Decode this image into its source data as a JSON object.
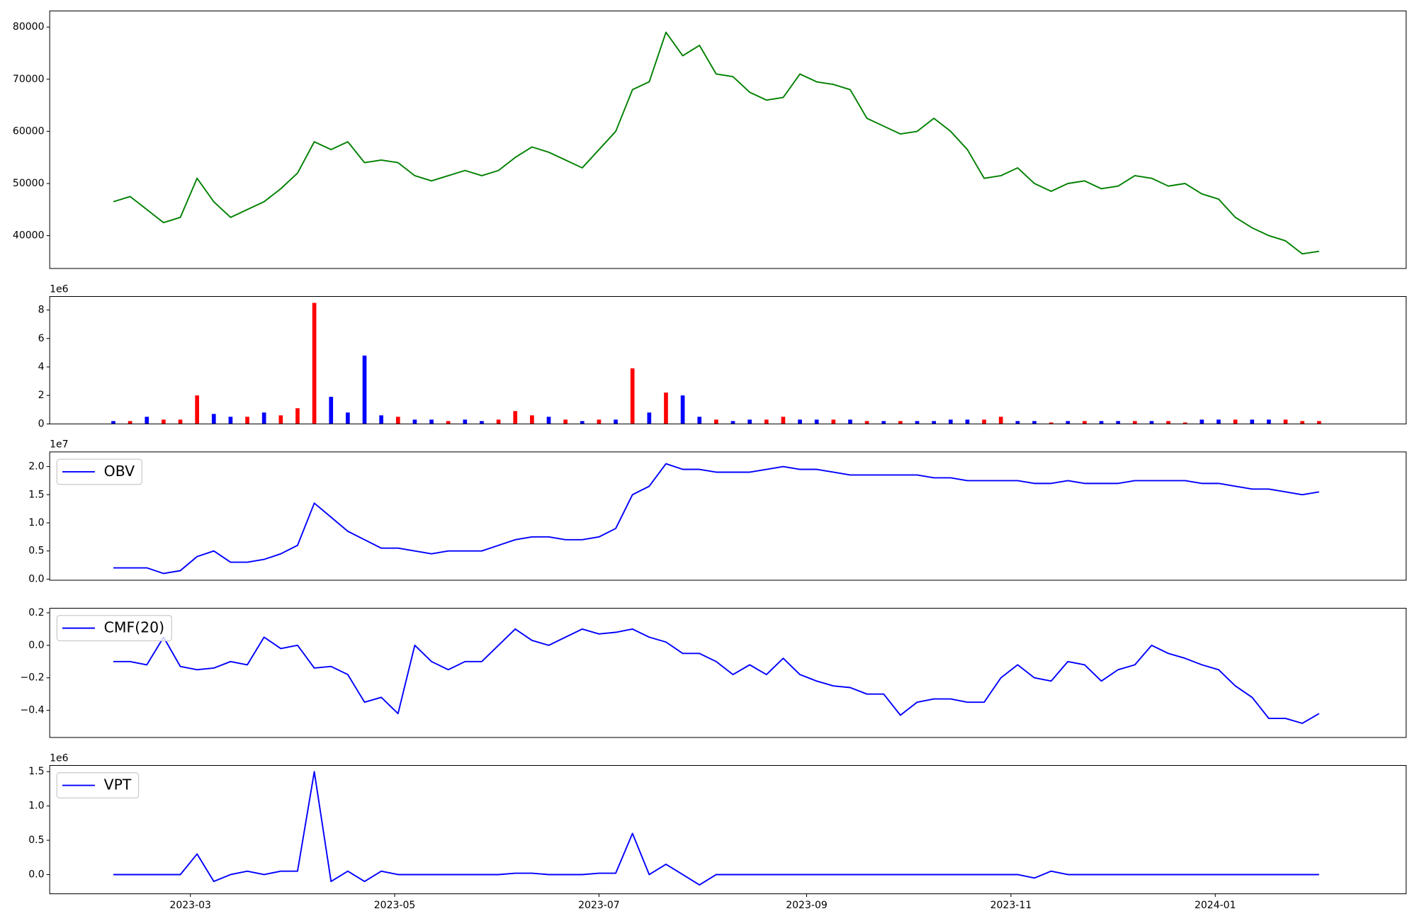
{
  "chart_data": [
    {
      "type": "line",
      "color": "#008000",
      "x": [
        -23,
        -18,
        -13,
        -8,
        -3,
        2,
        7,
        12,
        17,
        22,
        27,
        32,
        37,
        42,
        47,
        52,
        57,
        62,
        67,
        72,
        77,
        82,
        87,
        92,
        97,
        102,
        107,
        112,
        117,
        122,
        127,
        132,
        137,
        142,
        147,
        152,
        157,
        162,
        167,
        172,
        177,
        182,
        187,
        192,
        197,
        202,
        207,
        212,
        217,
        222,
        227,
        232,
        237,
        242,
        247,
        252,
        257,
        262,
        267,
        272,
        277,
        282,
        287,
        292,
        297,
        302,
        307,
        312,
        317,
        322,
        327,
        332,
        337
      ],
      "values": [
        46500,
        47500,
        45000,
        42500,
        43500,
        51000,
        46500,
        43500,
        45000,
        46500,
        49000,
        52000,
        58000,
        56500,
        58000,
        54000,
        54500,
        54000,
        51500,
        50500,
        51500,
        52500,
        51500,
        52500,
        55000,
        57000,
        56000,
        54500,
        53000,
        56500,
        60000,
        68000,
        69500,
        79000,
        74500,
        76500,
        71000,
        70500,
        67500,
        66000,
        66500,
        71000,
        69500,
        69000,
        68000,
        62500,
        61000,
        59500,
        60000,
        62500,
        60000,
        56500,
        51000,
        51500,
        53000,
        50000,
        48500,
        50000,
        50500,
        49000,
        49500,
        51500,
        51000,
        49500,
        50000,
        48000,
        47000,
        43500,
        41500,
        40000,
        39000,
        36500,
        37000
      ],
      "xlim": [
        -42,
        363
      ],
      "ylim": [
        33700,
        83100
      ],
      "yticks": [
        40000,
        50000,
        60000,
        70000,
        80000
      ]
    },
    {
      "type": "bar",
      "y_offset_label": "1e6",
      "x": [
        -23,
        -18,
        -13,
        -8,
        -3,
        2,
        7,
        12,
        17,
        22,
        27,
        32,
        37,
        42,
        47,
        52,
        57,
        62,
        67,
        72,
        77,
        82,
        87,
        92,
        97,
        102,
        107,
        112,
        117,
        122,
        127,
        132,
        137,
        142,
        147,
        152,
        157,
        162,
        167,
        172,
        177,
        182,
        187,
        192,
        197,
        202,
        207,
        212,
        217,
        222,
        227,
        232,
        237,
        242,
        247,
        252,
        257,
        262,
        267,
        272,
        277,
        282,
        287,
        292,
        297,
        302,
        307,
        312,
        317,
        322,
        327,
        332,
        337
      ],
      "values": [
        0.2,
        0.2,
        0.5,
        0.3,
        0.3,
        2.0,
        0.7,
        0.5,
        0.5,
        0.8,
        0.6,
        1.1,
        8.5,
        1.9,
        0.8,
        4.8,
        0.6,
        0.5,
        0.3,
        0.3,
        0.2,
        0.3,
        0.2,
        0.3,
        0.9,
        0.6,
        0.5,
        0.3,
        0.2,
        0.3,
        0.3,
        3.9,
        0.8,
        2.2,
        2.0,
        0.5,
        0.3,
        0.2,
        0.3,
        0.3,
        0.5,
        0.3,
        0.3,
        0.3,
        0.3,
        0.2,
        0.2,
        0.2,
        0.2,
        0.2,
        0.3,
        0.3,
        0.3,
        0.5,
        0.2,
        0.2,
        0.1,
        0.2,
        0.2,
        0.2,
        0.2,
        0.2,
        0.2,
        0.2,
        0.1,
        0.3,
        0.3,
        0.3,
        0.3,
        0.3,
        0.3,
        0.2,
        0.2
      ],
      "colors": [
        "#0000ff",
        "#ff0000",
        "#0000ff",
        "#ff0000",
        "#ff0000",
        "#ff0000",
        "#0000ff",
        "#0000ff",
        "#ff0000",
        "#0000ff",
        "#ff0000",
        "#ff0000",
        "#ff0000",
        "#0000ff",
        "#0000ff",
        "#0000ff",
        "#0000ff",
        "#ff0000",
        "#0000ff",
        "#0000ff",
        "#ff0000",
        "#0000ff",
        "#0000ff",
        "#ff0000",
        "#ff0000",
        "#ff0000",
        "#0000ff",
        "#ff0000",
        "#0000ff",
        "#ff0000",
        "#0000ff",
        "#ff0000",
        "#0000ff",
        "#ff0000",
        "#0000ff",
        "#0000ff",
        "#ff0000",
        "#0000ff",
        "#0000ff",
        "#ff0000",
        "#ff0000",
        "#0000ff",
        "#0000ff",
        "#ff0000",
        "#0000ff",
        "#ff0000",
        "#0000ff",
        "#ff0000",
        "#0000ff",
        "#0000ff",
        "#0000ff",
        "#0000ff",
        "#ff0000",
        "#ff0000",
        "#0000ff",
        "#0000ff",
        "#ff0000",
        "#0000ff",
        "#ff0000",
        "#0000ff",
        "#0000ff",
        "#ff0000",
        "#0000ff",
        "#ff0000",
        "#ff0000",
        "#0000ff",
        "#0000ff",
        "#ff0000",
        "#0000ff",
        "#0000ff",
        "#ff0000",
        "#ff0000",
        "#ff0000"
      ],
      "xlim": [
        -42,
        363
      ],
      "ylim": [
        0,
        8.95
      ],
      "yticks": [
        0,
        2,
        4,
        6,
        8
      ]
    },
    {
      "type": "line",
      "y_offset_label": "1e7",
      "legend": "upper left",
      "x": [
        -23,
        -18,
        -13,
        -8,
        -3,
        2,
        7,
        12,
        17,
        22,
        27,
        32,
        37,
        42,
        47,
        52,
        57,
        62,
        67,
        72,
        77,
        82,
        87,
        92,
        97,
        102,
        107,
        112,
        117,
        122,
        127,
        132,
        137,
        142,
        147,
        152,
        157,
        162,
        167,
        172,
        177,
        182,
        187,
        192,
        197,
        202,
        207,
        212,
        217,
        222,
        227,
        232,
        237,
        242,
        247,
        252,
        257,
        262,
        267,
        272,
        277,
        282,
        287,
        292,
        297,
        302,
        307,
        312,
        317,
        322,
        327,
        332,
        337
      ],
      "series": [
        {
          "name": "OBV",
          "color": "#0000ff",
          "values": [
            0.2,
            0.2,
            0.2,
            0.1,
            0.15,
            0.4,
            0.5,
            0.3,
            0.3,
            0.35,
            0.45,
            0.6,
            1.35,
            1.1,
            0.85,
            0.7,
            0.55,
            0.55,
            0.5,
            0.45,
            0.5,
            0.5,
            0.5,
            0.6,
            0.7,
            0.75,
            0.75,
            0.7,
            0.7,
            0.75,
            0.9,
            1.5,
            1.65,
            2.05,
            1.95,
            1.95,
            1.9,
            1.9,
            1.9,
            1.95,
            2.0,
            1.95,
            1.95,
            1.9,
            1.85,
            1.85,
            1.85,
            1.85,
            1.85,
            1.8,
            1.8,
            1.75,
            1.75,
            1.75,
            1.75,
            1.7,
            1.7,
            1.75,
            1.7,
            1.7,
            1.7,
            1.75,
            1.75,
            1.75,
            1.75,
            1.7,
            1.7,
            1.65,
            1.6,
            1.6,
            1.55,
            1.5,
            1.55
          ]
        }
      ],
      "xlim": [
        -42,
        363
      ],
      "ylim": [
        -0.02,
        2.26
      ],
      "yticks": [
        {
          "value": 0,
          "label": "0.0"
        },
        0.5,
        {
          "value": 1,
          "label": "1.0"
        },
        1.5,
        {
          "value": 2,
          "label": "2.0"
        }
      ]
    },
    {
      "type": "line",
      "legend": "upper left",
      "x": [
        -23,
        -18,
        -13,
        -8,
        -3,
        2,
        7,
        12,
        17,
        22,
        27,
        32,
        37,
        42,
        47,
        52,
        57,
        62,
        67,
        72,
        77,
        82,
        87,
        92,
        97,
        102,
        107,
        112,
        117,
        122,
        127,
        132,
        137,
        142,
        147,
        152,
        157,
        162,
        167,
        172,
        177,
        182,
        187,
        192,
        197,
        202,
        207,
        212,
        217,
        222,
        227,
        232,
        237,
        242,
        247,
        252,
        257,
        262,
        267,
        272,
        277,
        282,
        287,
        292,
        297,
        302,
        307,
        312,
        317,
        322,
        327,
        332,
        337
      ],
      "series": [
        {
          "name": "CMF(20)",
          "color": "#0000ff",
          "values": [
            -0.1,
            -0.1,
            -0.12,
            0.05,
            -0.13,
            -0.15,
            -0.14,
            -0.1,
            -0.12,
            0.05,
            -0.02,
            0.0,
            -0.14,
            -0.13,
            -0.18,
            -0.35,
            -0.32,
            -0.42,
            0.0,
            -0.1,
            -0.15,
            -0.1,
            -0.1,
            0.0,
            0.1,
            0.03,
            0.0,
            0.05,
            0.1,
            0.07,
            0.08,
            0.1,
            0.05,
            0.02,
            -0.05,
            -0.05,
            -0.1,
            -0.18,
            -0.12,
            -0.18,
            -0.08,
            -0.18,
            -0.22,
            -0.25,
            -0.26,
            -0.3,
            -0.3,
            -0.43,
            -0.35,
            -0.33,
            -0.33,
            -0.35,
            -0.35,
            -0.2,
            -0.12,
            -0.2,
            -0.22,
            -0.1,
            -0.12,
            -0.22,
            -0.15,
            -0.12,
            0.0,
            -0.05,
            -0.08,
            -0.12,
            -0.15,
            -0.25,
            -0.32,
            -0.45,
            -0.45,
            -0.48,
            -0.42
          ]
        }
      ],
      "xlim": [
        -42,
        363
      ],
      "ylim": [
        -0.567,
        0.228
      ],
      "yticks": [
        {
          "value": -0.4,
          "label": "−0.4"
        },
        {
          "value": -0.2,
          "label": "−0.2"
        },
        {
          "value": 0,
          "label": "0.0"
        },
        0.2
      ]
    },
    {
      "type": "line",
      "y_offset_label": "1e6",
      "legend": "upper left",
      "x": [
        -23,
        -18,
        -13,
        -8,
        -3,
        2,
        7,
        12,
        17,
        22,
        27,
        32,
        37,
        42,
        47,
        52,
        57,
        62,
        67,
        72,
        77,
        82,
        87,
        92,
        97,
        102,
        107,
        112,
        117,
        122,
        127,
        132,
        137,
        142,
        147,
        152,
        157,
        162,
        167,
        172,
        177,
        182,
        187,
        192,
        197,
        202,
        207,
        212,
        217,
        222,
        227,
        232,
        237,
        242,
        247,
        252,
        257,
        262,
        267,
        272,
        277,
        282,
        287,
        292,
        297,
        302,
        307,
        312,
        317,
        322,
        327,
        332,
        337
      ],
      "series": [
        {
          "name": "VPT",
          "color": "#0000ff",
          "values": [
            0,
            0,
            0,
            0,
            0,
            0.3,
            -0.1,
            0,
            0.05,
            0,
            0.05,
            0.05,
            1.5,
            -0.1,
            0.05,
            -0.1,
            0.05,
            0,
            0,
            0,
            0,
            0,
            0,
            0,
            0.02,
            0.02,
            0,
            0,
            0,
            0.02,
            0.02,
            0.6,
            0,
            0.15,
            0,
            -0.15,
            0,
            0,
            0,
            0,
            0,
            0,
            0,
            0,
            0,
            0,
            0,
            0,
            0,
            0,
            0,
            0,
            0,
            0,
            0,
            -0.05,
            0.05,
            0,
            0,
            0,
            0,
            0,
            0,
            0,
            0,
            0,
            0,
            0,
            0,
            0,
            0,
            0,
            0
          ]
        }
      ],
      "xlim": [
        -42,
        363
      ],
      "ylim": [
        -0.28,
        1.59
      ],
      "yticks": [
        {
          "value": 0,
          "label": "0.0"
        },
        0.5,
        {
          "value": 1,
          "label": "1.0"
        },
        1.5
      ],
      "xticks": [
        {
          "value": 0,
          "label": "2023-03"
        },
        {
          "value": 61,
          "label": "2023-05"
        },
        {
          "value": 122,
          "label": "2023-07"
        },
        {
          "value": 184,
          "label": "2023-09"
        },
        {
          "value": 245,
          "label": "2023-11"
        },
        {
          "value": 306,
          "label": "2024-01"
        }
      ]
    }
  ]
}
